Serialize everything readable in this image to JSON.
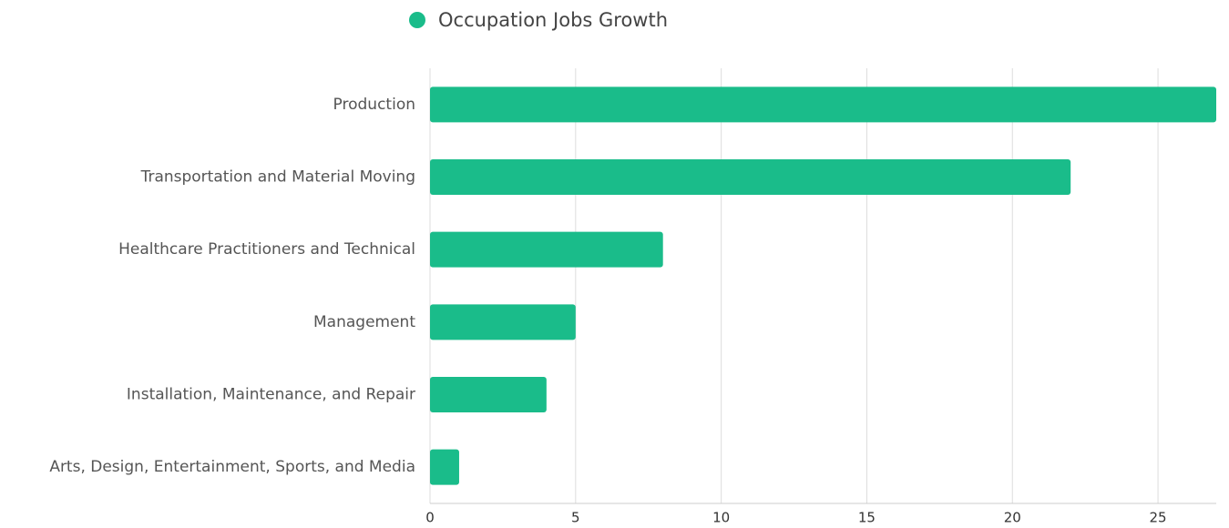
{
  "chart_data": {
    "type": "bar",
    "orientation": "horizontal",
    "categories": [
      "Production",
      "Transportation and Material Moving",
      "Healthcare Practitioners and Technical",
      "Management",
      "Installation, Maintenance, and Repair",
      "Arts, Design, Entertainment, Sports, and Media"
    ],
    "series": [
      {
        "name": "Occupation Jobs Growth",
        "color": "#1abc8a",
        "values": [
          27,
          22,
          8,
          5,
          4,
          1
        ]
      }
    ],
    "xlim": [
      0,
      27
    ],
    "xticks": [
      0,
      5,
      10,
      15,
      20,
      25
    ],
    "grid": true,
    "legend": "top"
  }
}
